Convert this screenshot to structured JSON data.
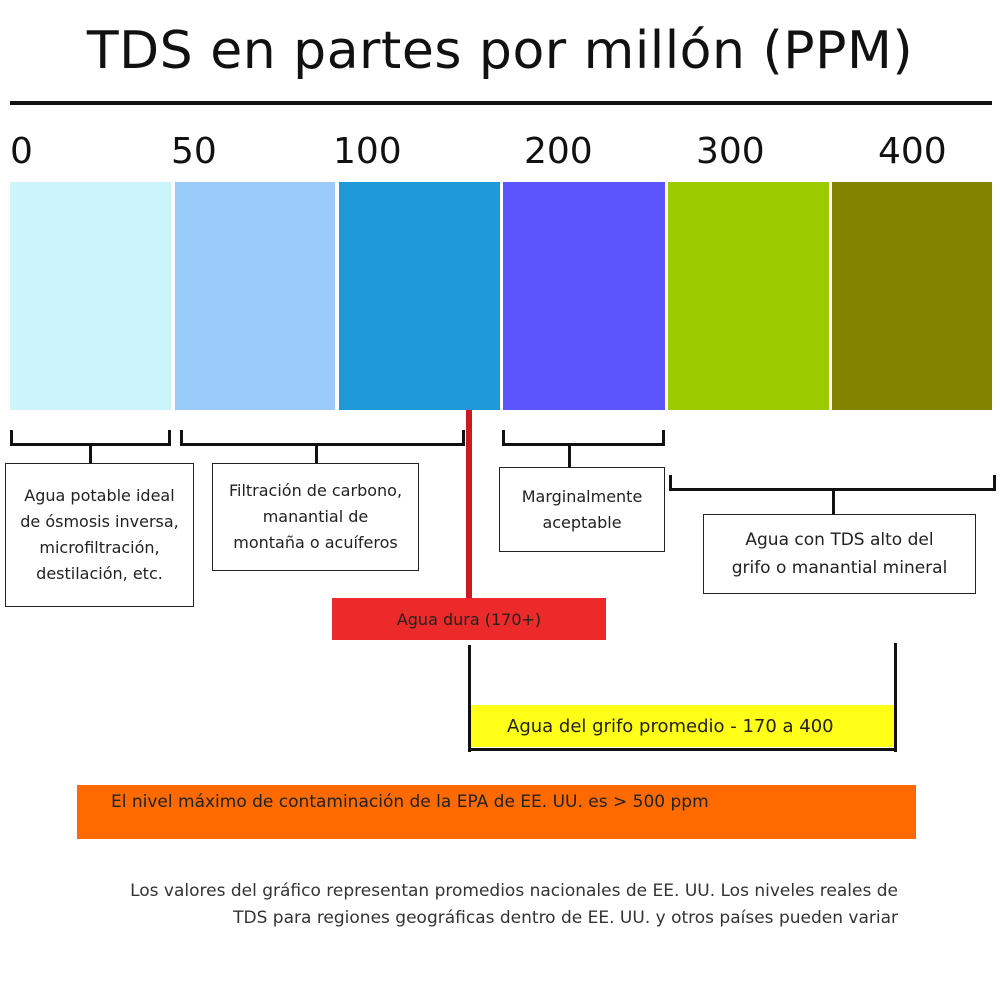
{
  "title": "TDS en partes por millón (PPM)",
  "scale": {
    "ticks": [
      "0",
      "50",
      "100",
      "200",
      "300",
      "400"
    ],
    "segments": [
      {
        "color": "#ccf5fb"
      },
      {
        "color": "#99ccf8"
      },
      {
        "color": "#1f99d8"
      },
      {
        "color": "#5c54fc"
      },
      {
        "color": "#9acc00"
      },
      {
        "color": "#848300"
      }
    ]
  },
  "groups": [
    {
      "text": "Agua potable ideal\nde ósmosis inversa,\nmicrofiltración,\ndestilación, etc."
    },
    {
      "text": "Filtración de carbono,\nmanantial de\nmontaña o acuíferos"
    },
    {
      "text": "Marginalmente\naceptable"
    },
    {
      "text": "Agua con TDS alto del\ngrifo o manantial mineral"
    }
  ],
  "hard_water": {
    "label": "Agua dura (170+)",
    "color": "#ec2a2a",
    "value_ppm": 170
  },
  "tap_average": {
    "label": "Agua del grifo promedio - 170 a 400",
    "color": "#ffff18",
    "min_ppm": 170,
    "max_ppm": 400
  },
  "epa": {
    "label": "El nivel máximo de contaminación de la EPA de EE. UU. es > 500 ppm",
    "color": "#fe6a00"
  },
  "footnote": "Los valores del gráfico representan promedios nacionales de EE. UU. Los niveles reales de\nTDS para regiones geográficas dentro de EE. UU. y otros países pueden variar"
}
